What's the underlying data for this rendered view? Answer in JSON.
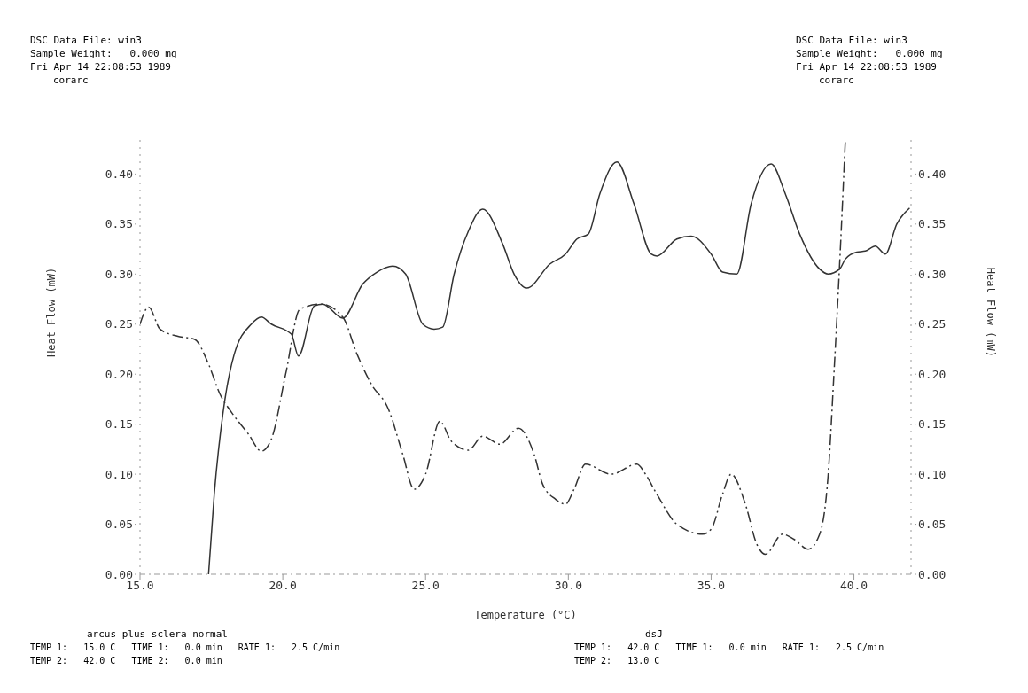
{
  "chart_data": {
    "type": "line",
    "xlabel": "Temperature (°C)",
    "ylabel": "Heat Flow (mW)",
    "y2label": "Heat Flow (mW)",
    "annotations": [
      "DSC Data File: win3",
      "Sample Weight:   0.000 mg",
      "Fri Apr 14 22:08:53 1989",
      "corarc",
      "DSC Data File: win3",
      "Sample Weight:   0.000 mg",
      "Fri Apr 14 22:08:53 1989",
      "corarc",
      "arcus plus sclera normal",
      "TEMP 1:   15.0 C   TIME 1:   0.0 min   RATE 1:   2.5 C/min",
      "TEMP 2:   42.0 C   TIME 2:   0.0 min",
      "dsJ",
      "TEMP 1:   42.0 C   TIME 1:   0.0 min   RATE 1:   2.5 C/min",
      "TEMP 2:   13.0 C"
    ],
    "xlim": [
      15,
      42
    ],
    "xticks": [
      {
        "value": 15,
        "label": "15.0"
      },
      {
        "value": 20,
        "label": "20.0"
      },
      {
        "value": 25,
        "label": "25.0"
      },
      {
        "value": 30,
        "label": "30.0"
      },
      {
        "value": 35,
        "label": "35.0"
      },
      {
        "value": 40,
        "label": "40.0"
      }
    ],
    "ylim": [
      0,
      0.434
    ],
    "yticks": [
      {
        "value": 0,
        "label": "0.00"
      },
      {
        "value": 0.05,
        "label": "0.05"
      },
      {
        "value": 0.1,
        "label": "0.10"
      },
      {
        "value": 0.15,
        "label": "0.15"
      },
      {
        "value": 0.2,
        "label": "0.20"
      },
      {
        "value": 0.25,
        "label": "0.25"
      },
      {
        "value": 0.3,
        "label": "0.30"
      },
      {
        "value": 0.35,
        "label": "0.35"
      },
      {
        "value": 0.4,
        "label": "0.40"
      }
    ],
    "y2lim": [
      0,
      0.434
    ],
    "y2ticks": [
      {
        "value": 0,
        "label": "0.00"
      },
      {
        "value": 0.05,
        "label": "0.05"
      },
      {
        "value": 0.1,
        "label": "0.10"
      },
      {
        "value": 0.15,
        "label": "0.15"
      },
      {
        "value": 0.2,
        "label": "0.20"
      },
      {
        "value": 0.25,
        "label": "0.25"
      },
      {
        "value": 0.3,
        "label": "0.30"
      },
      {
        "value": 0.35,
        "label": "0.35"
      },
      {
        "value": 0.4,
        "label": "0.40"
      }
    ],
    "marker": "none",
    "series": [
      {
        "color": "#333333",
        "line_style": "solid",
        "x": [
          17.4,
          17.6,
          17.9,
          18.3,
          18.9,
          19.25,
          19.6,
          20.3,
          20.55,
          21.1,
          21.4,
          22.1,
          22.8,
          23.3,
          23.85,
          24.3,
          24.9,
          25.3,
          25.6,
          26.0,
          26.5,
          27.0,
          27.7,
          28.1,
          28.55,
          29.35,
          29.9,
          30.3,
          30.7,
          31.1,
          31.7,
          32.3,
          32.9,
          33.1,
          33.8,
          34.3,
          35.0,
          35.4,
          35.9,
          36.4,
          37.1,
          37.6,
          38.1,
          38.8,
          39.1,
          39.5,
          39.7,
          40.1,
          40.4,
          40.75,
          41.1,
          41.5,
          41.95
        ],
        "values": [
          0,
          0.08,
          0.16,
          0.22,
          0.25,
          0.257,
          0.25,
          0.24,
          0.218,
          0.268,
          0.27,
          0.256,
          0.29,
          0.302,
          0.308,
          0.3,
          0.25,
          0.245,
          0.247,
          0.3,
          0.343,
          0.365,
          0.33,
          0.3,
          0.286,
          0.31,
          0.32,
          0.335,
          0.34,
          0.38,
          0.412,
          0.37,
          0.32,
          0.318,
          0.335,
          0.338,
          0.32,
          0.302,
          0.3,
          0.37,
          0.41,
          0.38,
          0.34,
          0.305,
          0.3,
          0.305,
          0.315,
          0.322,
          0.323,
          0.328,
          0.32,
          0.35,
          0.366
        ]
      },
      {
        "color": "#333333",
        "line_style": "dashed",
        "x": [
          15.0,
          15.3,
          15.7,
          16.3,
          16.9,
          17.4,
          17.8,
          18.2,
          18.8,
          19.25,
          19.6,
          20.1,
          20.6,
          21.35,
          22.1,
          22.6,
          23.1,
          23.7,
          24.2,
          24.6,
          25.0,
          25.5,
          25.9,
          26.5,
          27.0,
          27.6,
          28.25,
          28.8,
          29.1,
          29.55,
          29.9,
          30.2,
          30.6,
          31.5,
          32.4,
          32.7,
          33.1,
          33.8,
          34.7,
          35.0,
          35.4,
          35.7,
          36.2,
          36.6,
          36.9,
          37.5,
          37.9,
          38.4,
          38.8,
          39.1,
          39.3,
          39.5,
          39.7
        ],
        "values": [
          0.25,
          0.267,
          0.245,
          0.238,
          0.235,
          0.21,
          0.18,
          0.162,
          0.14,
          0.123,
          0.135,
          0.2,
          0.265,
          0.27,
          0.257,
          0.22,
          0.19,
          0.165,
          0.12,
          0.085,
          0.1,
          0.153,
          0.133,
          0.124,
          0.138,
          0.13,
          0.146,
          0.12,
          0.09,
          0.075,
          0.07,
          0.085,
          0.11,
          0.1,
          0.11,
          0.1,
          0.08,
          0.05,
          0.04,
          0.045,
          0.08,
          0.1,
          0.07,
          0.03,
          0.02,
          0.04,
          0.035,
          0.025,
          0.04,
          0.1,
          0.2,
          0.31,
          0.434
        ]
      }
    ]
  }
}
